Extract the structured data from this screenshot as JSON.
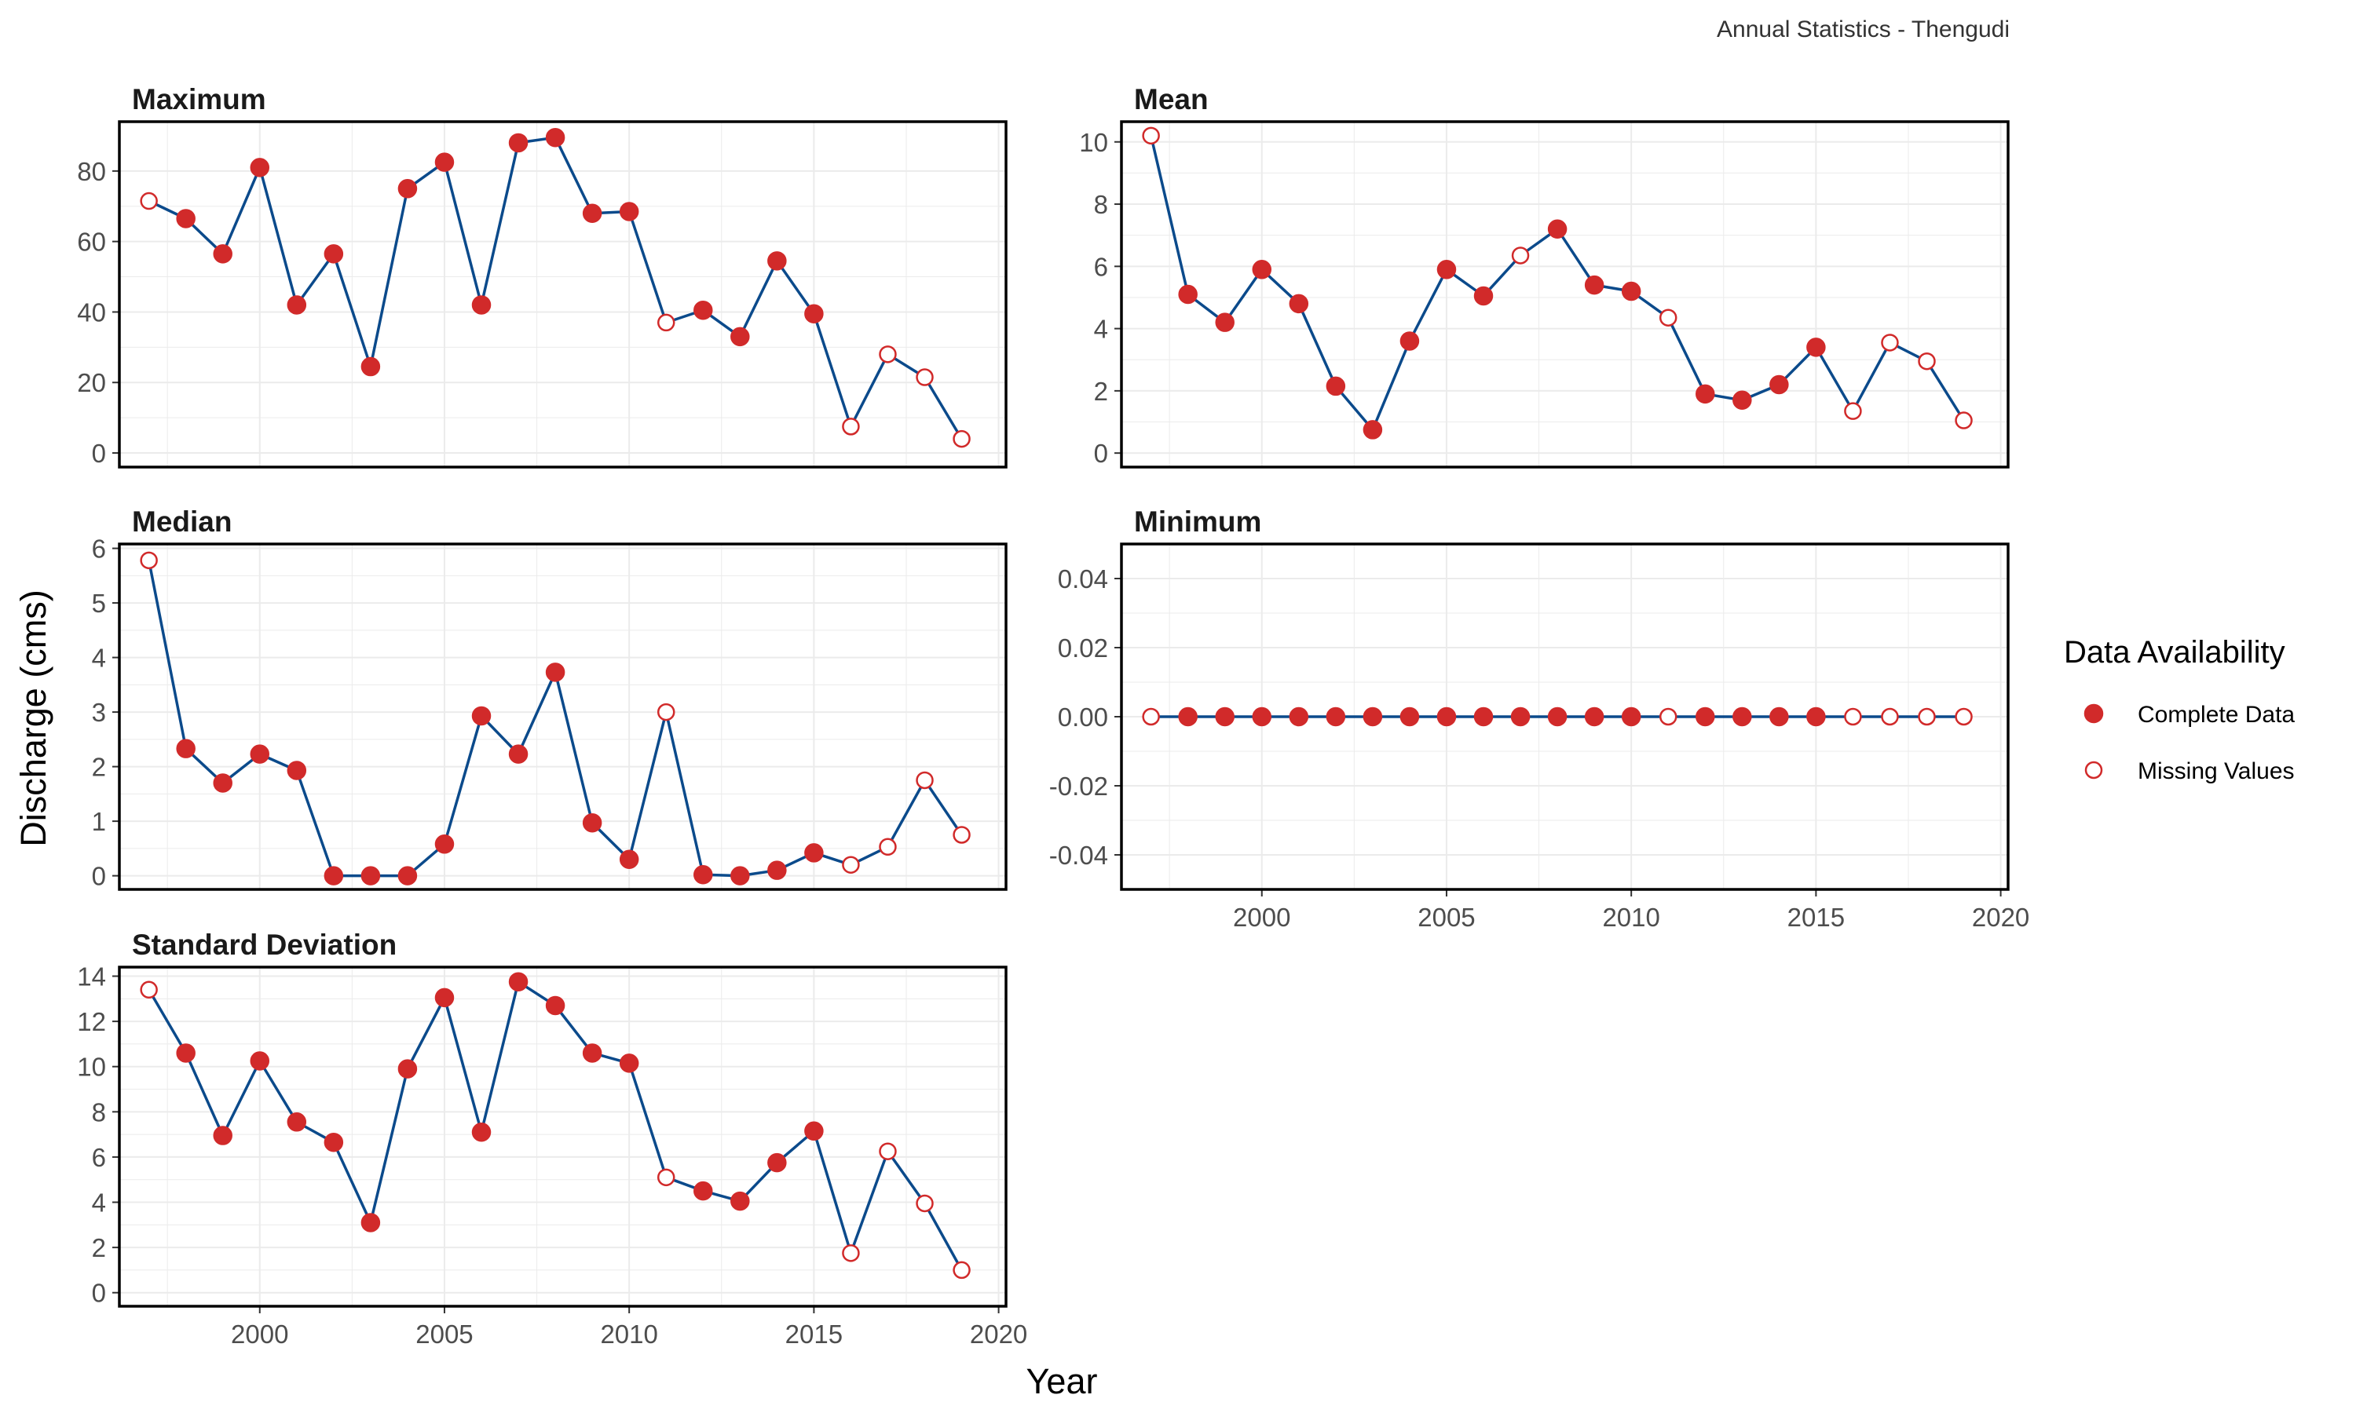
{
  "caption": "Annual Statistics - Thengudi",
  "axes": {
    "xlabel": "Year",
    "ylabel": "Discharge (cms)"
  },
  "legend": {
    "title": "Data Availability",
    "placement": "right",
    "items": [
      {
        "label": "Complete Data",
        "marker": "filled-circle"
      },
      {
        "label": "Missing Values",
        "marker": "open-circle"
      }
    ]
  },
  "colors": {
    "line": "#0b4a8b",
    "point": "#d12a2a",
    "frame": "#000000",
    "grid": "#ebebeb"
  },
  "chart_data": [
    {
      "type": "line",
      "title": "Maximum",
      "x": [
        1997,
        1998,
        1999,
        2000,
        2001,
        2002,
        2003,
        2004,
        2005,
        2006,
        2007,
        2008,
        2009,
        2010,
        2011,
        2012,
        2013,
        2014,
        2015,
        2016,
        2017,
        2018,
        2019
      ],
      "values": [
        71.5,
        66.5,
        56.5,
        81,
        42,
        56.5,
        24.5,
        75,
        82.5,
        42,
        88,
        89.5,
        68,
        68.5,
        37,
        40.5,
        33,
        54.5,
        39.5,
        7.5,
        28,
        21.5,
        4
      ],
      "missing": [
        1,
        0,
        0,
        0,
        0,
        0,
        0,
        0,
        0,
        0,
        0,
        0,
        0,
        0,
        1,
        0,
        0,
        0,
        0,
        1,
        1,
        1,
        1
      ],
      "xlim": [
        1996.2,
        2020.2
      ],
      "ylim": [
        -4,
        94
      ],
      "yticks": [
        0,
        20,
        40,
        60,
        80
      ],
      "ytick_labels": [
        "0",
        "20",
        "40",
        "60",
        "80"
      ],
      "show_x_ticks": false,
      "grid": true
    },
    {
      "type": "line",
      "title": "Mean",
      "x": [
        1997,
        1998,
        1999,
        2000,
        2001,
        2002,
        2003,
        2004,
        2005,
        2006,
        2007,
        2008,
        2009,
        2010,
        2011,
        2012,
        2013,
        2014,
        2015,
        2016,
        2017,
        2018,
        2019
      ],
      "values": [
        10.2,
        5.1,
        4.2,
        5.9,
        4.8,
        2.15,
        0.75,
        3.6,
        5.9,
        5.05,
        6.35,
        7.2,
        5.4,
        5.2,
        4.35,
        1.9,
        1.7,
        2.2,
        3.4,
        1.35,
        3.55,
        2.95,
        1.05
      ],
      "missing": [
        1,
        0,
        0,
        0,
        0,
        0,
        0,
        0,
        0,
        0,
        1,
        0,
        0,
        0,
        1,
        0,
        0,
        0,
        0,
        1,
        1,
        1,
        1
      ],
      "xlim": [
        1996.2,
        2020.2
      ],
      "ylim": [
        -0.45,
        10.65
      ],
      "yticks": [
        0,
        2,
        4,
        6,
        8,
        10
      ],
      "ytick_labels": [
        "0",
        "2",
        "4",
        "6",
        "8",
        "10"
      ],
      "show_x_ticks": false,
      "grid": true
    },
    {
      "type": "line",
      "title": "Median",
      "x": [
        1997,
        1998,
        1999,
        2000,
        2001,
        2002,
        2003,
        2004,
        2005,
        2006,
        2007,
        2008,
        2009,
        2010,
        2011,
        2012,
        2013,
        2014,
        2015,
        2016,
        2017,
        2018,
        2019
      ],
      "values": [
        5.78,
        2.33,
        1.7,
        2.23,
        1.93,
        0,
        0,
        0,
        0.58,
        2.93,
        2.23,
        3.73,
        0.97,
        0.3,
        3,
        0.02,
        0,
        0.1,
        0.42,
        0.2,
        0.53,
        1.75,
        0.75
      ],
      "missing": [
        1,
        0,
        0,
        0,
        0,
        0,
        0,
        0,
        0,
        0,
        0,
        0,
        0,
        0,
        1,
        0,
        0,
        0,
        0,
        1,
        1,
        1,
        1
      ],
      "xlim": [
        1996.2,
        2020.2
      ],
      "ylim": [
        -0.25,
        6.08
      ],
      "yticks": [
        0,
        1,
        2,
        3,
        4,
        5,
        6
      ],
      "ytick_labels": [
        "0",
        "1",
        "2",
        "3",
        "4",
        "5",
        "6"
      ],
      "show_x_ticks": false,
      "grid": true
    },
    {
      "type": "line",
      "title": "Minimum",
      "x": [
        1997,
        1998,
        1999,
        2000,
        2001,
        2002,
        2003,
        2004,
        2005,
        2006,
        2007,
        2008,
        2009,
        2010,
        2011,
        2012,
        2013,
        2014,
        2015,
        2016,
        2017,
        2018,
        2019
      ],
      "values": [
        0,
        0,
        0,
        0,
        0,
        0,
        0,
        0,
        0,
        0,
        0,
        0,
        0,
        0,
        0,
        0,
        0,
        0,
        0,
        0,
        0,
        0,
        0
      ],
      "missing": [
        1,
        0,
        0,
        0,
        0,
        0,
        0,
        0,
        0,
        0,
        0,
        0,
        0,
        0,
        1,
        0,
        0,
        0,
        0,
        1,
        1,
        1,
        1
      ],
      "xlim": [
        1996.2,
        2020.2
      ],
      "ylim": [
        -0.05,
        0.05
      ],
      "yticks": [
        -0.04,
        -0.02,
        0,
        0.02,
        0.04
      ],
      "ytick_labels": [
        "-0.04",
        "-0.02",
        "0.00",
        "0.02",
        "0.04"
      ],
      "show_x_ticks": true,
      "xticks": [
        2000,
        2005,
        2010,
        2015,
        2020
      ],
      "xtick_labels": [
        "2000",
        "2005",
        "2010",
        "2015",
        "2020"
      ],
      "grid": true
    },
    {
      "type": "line",
      "title": "Standard Deviation",
      "x": [
        1997,
        1998,
        1999,
        2000,
        2001,
        2002,
        2003,
        2004,
        2005,
        2006,
        2007,
        2008,
        2009,
        2010,
        2011,
        2012,
        2013,
        2014,
        2015,
        2016,
        2017,
        2018,
        2019
      ],
      "values": [
        13.4,
        10.6,
        6.95,
        10.25,
        7.55,
        6.65,
        3.1,
        9.9,
        13.05,
        7.1,
        13.75,
        12.7,
        10.6,
        10.15,
        5.1,
        4.5,
        4.05,
        5.75,
        7.15,
        1.75,
        6.25,
        3.95,
        1
      ],
      "missing": [
        1,
        0,
        0,
        0,
        0,
        0,
        0,
        0,
        0,
        0,
        0,
        0,
        0,
        0,
        1,
        0,
        0,
        0,
        0,
        1,
        1,
        1,
        1
      ],
      "xlim": [
        1996.2,
        2020.2
      ],
      "ylim": [
        -0.6,
        14.4
      ],
      "yticks": [
        0,
        2,
        4,
        6,
        8,
        10,
        12,
        14
      ],
      "ytick_labels": [
        "0",
        "2",
        "4",
        "6",
        "8",
        "10",
        "12",
        "14"
      ],
      "show_x_ticks": true,
      "xticks": [
        2000,
        2005,
        2010,
        2015,
        2020
      ],
      "xtick_labels": [
        "2000",
        "2005",
        "2010",
        "2015",
        "2020"
      ],
      "grid": true
    }
  ]
}
